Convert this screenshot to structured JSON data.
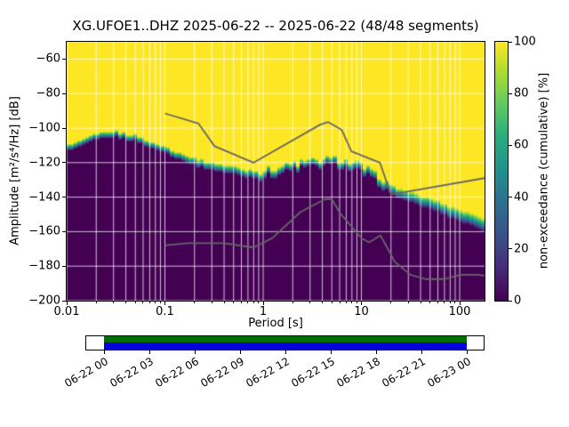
{
  "chart_data": {
    "type": "heatmap",
    "title": "XG.UFOE1..DHZ   2025-06-22 -- 2025-06-22  (48/48 segments)",
    "xlabel": "Period [s]",
    "ylabel": "Amplitude [m²/s⁴/Hz] [dB]",
    "x_scale": "log",
    "xlim": [
      0.01,
      179
    ],
    "ylim": [
      -200,
      -50
    ],
    "x_tick_values": [
      0.01,
      0.1,
      1,
      10,
      100
    ],
    "x_tick_labels": [
      "0.01",
      "0.1",
      "1",
      "10",
      "100"
    ],
    "y_tick_values": [
      -200,
      -180,
      -160,
      -140,
      -120,
      -100,
      -80,
      -60
    ],
    "y_tick_labels": [
      "−200",
      "−180",
      "−160",
      "−140",
      "−120",
      "−100",
      "−80",
      "−60"
    ],
    "grid": true,
    "colorbar": {
      "label": "non-exceedance (cumulative) [%]",
      "tick_values": [
        0,
        20,
        40,
        60,
        80,
        100
      ],
      "tick_labels": [
        "0",
        "20",
        "40",
        "60",
        "80",
        "100"
      ],
      "range": [
        0,
        100
      ],
      "colormap": "viridis"
    },
    "viridis_stops": [
      [
        0.0,
        "#440154"
      ],
      [
        0.13,
        "#472c7a"
      ],
      [
        0.25,
        "#3b518b"
      ],
      [
        0.38,
        "#2c718e"
      ],
      [
        0.5,
        "#21908d"
      ],
      [
        0.63,
        "#27ad81"
      ],
      [
        0.75,
        "#5cc863"
      ],
      [
        0.88,
        "#aadc32"
      ],
      [
        1.0,
        "#fde725"
      ]
    ],
    "median_psd_db": {
      "periods": [
        0.01,
        0.015,
        0.02,
        0.03,
        0.05,
        0.07,
        0.1,
        0.15,
        0.2,
        0.3,
        0.5,
        0.7,
        1,
        1.5,
        2,
        3,
        5,
        7,
        10,
        15,
        20,
        30,
        50,
        70,
        100,
        179
      ],
      "db": [
        -112,
        -108,
        -105.5,
        -103.5,
        -106,
        -109.5,
        -112.5,
        -116.5,
        -119.5,
        -122,
        -124.5,
        -126.5,
        -126.5,
        -124.5,
        -122.5,
        -121,
        -119.5,
        -121,
        -124,
        -130,
        -135.5,
        -140,
        -144,
        -147,
        -151,
        -155.5
      ],
      "spread_db": [
        4,
        4,
        4,
        4,
        4,
        4,
        4,
        4.5,
        5,
        5,
        5,
        5,
        5,
        5,
        4.5,
        4.5,
        4.5,
        5,
        5,
        5.5,
        6,
        6.5,
        7,
        7,
        7.5,
        8
      ]
    },
    "noise_models": {
      "color": "#666666",
      "nhnm": {
        "periods": [
          0.1,
          0.22,
          0.32,
          0.8,
          3.8,
          4.6,
          6.3,
          7.9,
          15.4,
          20,
          179
        ],
        "db": [
          -91.5,
          -97.4,
          -110.5,
          -120,
          -98,
          -96.5,
          -101,
          -113.5,
          -120,
          -138.5,
          -129
        ]
      },
      "nlnm": {
        "periods": [
          0.1,
          0.17,
          0.4,
          0.8,
          1.24,
          2.4,
          4.3,
          5,
          6,
          10,
          12,
          15.6,
          21.9,
          31.6,
          45,
          70,
          101,
          154,
          179
        ],
        "db": [
          -168,
          -166.7,
          -166.7,
          -169.2,
          -163.7,
          -148.6,
          -141.1,
          -141.1,
          -149,
          -163.8,
          -166.2,
          -162.1,
          -177.5,
          -185,
          -187.5,
          -187.5,
          -185,
          -185,
          -185.5
        ]
      }
    },
    "coverage": {
      "date_tick_labels": [
        "06-22 00",
        "06-22 03",
        "06-22 06",
        "06-22 09",
        "06-22 12",
        "06-22 15",
        "06-22 18",
        "06-22 21",
        "06-23 00"
      ],
      "processed_color": "#006e00",
      "data_color": "#0000dd"
    }
  }
}
